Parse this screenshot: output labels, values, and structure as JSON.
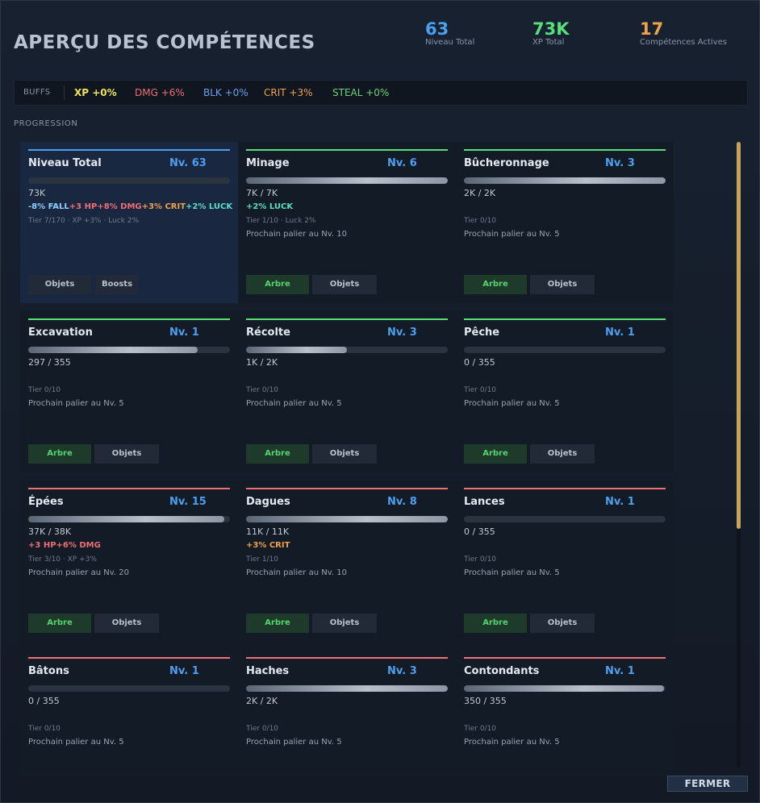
{
  "title": "APERÇU DES COMPÉTENCES",
  "stats": [
    {
      "value": "63",
      "label": "Niveau Total",
      "color": "#4d9ff0"
    },
    {
      "value": "73K",
      "label": "XP Total",
      "color": "#57e07a"
    },
    {
      "value": "17",
      "label": "Compétences Actives",
      "color": "#f0a24a"
    }
  ],
  "buffs": {
    "label": "BUFFS",
    "items": [
      {
        "text": "XP +0%",
        "color": "#f2e15a"
      },
      {
        "text": "DMG +6%",
        "color": "#ef6f74"
      },
      {
        "text": "BLK +0%",
        "color": "#6f9ff0"
      },
      {
        "text": "CRIT +3%",
        "color": "#f0a24a"
      },
      {
        "text": "STEAL +0%",
        "color": "#6fd37a"
      }
    ]
  },
  "progression_label": "PROGRESSION",
  "cards": [
    {
      "name": "Niveau Total",
      "level": "Nv. 63",
      "xp": "73K",
      "progress": 0,
      "line": "#4d9ff0",
      "selected": true,
      "bonus": [
        {
          "t": "-8% FALL",
          "c": "#8fd0ff"
        },
        {
          "t": "+3 HP",
          "c": "#ef6f74"
        },
        {
          "t": "+8% DMG",
          "c": "#ef6f74"
        },
        {
          "t": "+3% CRIT",
          "c": "#f0a24a"
        },
        {
          "t": "+2% LUCK",
          "c": "#57e0c8"
        }
      ],
      "tier": "Tier 7/170 · XP +3% · Luck 2%",
      "next": "",
      "buttons": [
        "Objets",
        "Boosts"
      ]
    },
    {
      "name": "Minage",
      "level": "Nv. 6",
      "xp": "7K / 7K",
      "progress": 1.0,
      "line": "#57e07a",
      "bonus": [
        {
          "t": "+2% LUCK",
          "c": "#57e0c8"
        }
      ],
      "tier": "Tier 1/10 · Luck 2%",
      "next": "Prochain palier au Nv. 10",
      "buttons": [
        "Arbre",
        "Objets"
      ]
    },
    {
      "name": "Bûcheronnage",
      "level": "Nv. 3",
      "xp": "2K / 2K",
      "progress": 1.0,
      "line": "#57e07a",
      "bonus": [],
      "tier": "Tier 0/10",
      "next": "Prochain palier au Nv. 5",
      "buttons": [
        "Arbre",
        "Objets"
      ]
    },
    {
      "name": "Excavation",
      "level": "Nv. 1",
      "xp": "297 / 355",
      "progress": 0.84,
      "line": "#57e07a",
      "bonus": [],
      "tier": "Tier 0/10",
      "next": "Prochain palier au Nv. 5",
      "buttons": [
        "Arbre",
        "Objets"
      ]
    },
    {
      "name": "Récolte",
      "level": "Nv. 3",
      "xp": "1K / 2K",
      "progress": 0.5,
      "line": "#57e07a",
      "bonus": [],
      "tier": "Tier 0/10",
      "next": "Prochain palier au Nv. 5",
      "buttons": [
        "Arbre",
        "Objets"
      ]
    },
    {
      "name": "Pêche",
      "level": "Nv. 1",
      "xp": "0 / 355",
      "progress": 0,
      "line": "#57e07a",
      "bonus": [],
      "tier": "Tier 0/10",
      "next": "Prochain palier au Nv. 5",
      "buttons": [
        "Arbre",
        "Objets"
      ]
    },
    {
      "name": "Épées",
      "level": "Nv. 15",
      "xp": "37K / 38K",
      "progress": 0.97,
      "line": "#ef6f74",
      "bonus": [
        {
          "t": "+3 HP",
          "c": "#ef6f74"
        },
        {
          "t": "+6% DMG",
          "c": "#ef6f74"
        }
      ],
      "tier": "Tier 3/10 · XP +3%",
      "next": "Prochain palier au Nv. 20",
      "buttons": [
        "Arbre",
        "Objets"
      ]
    },
    {
      "name": "Dagues",
      "level": "Nv. 8",
      "xp": "11K / 11K",
      "progress": 1.0,
      "line": "#ef6f74",
      "bonus": [
        {
          "t": "+3% CRIT",
          "c": "#f0a24a"
        }
      ],
      "tier": "Tier 1/10",
      "next": "Prochain palier au Nv. 10",
      "buttons": [
        "Arbre",
        "Objets"
      ]
    },
    {
      "name": "Lances",
      "level": "Nv. 1",
      "xp": "0 / 355",
      "progress": 0,
      "line": "#ef6f74",
      "bonus": [],
      "tier": "Tier 0/10",
      "next": "Prochain palier au Nv. 5",
      "buttons": [
        "Arbre",
        "Objets"
      ]
    },
    {
      "name": "Bâtons",
      "level": "Nv. 1",
      "xp": "0 / 355",
      "progress": 0,
      "line": "#ef6f74",
      "bonus": [],
      "tier": "Tier 0/10",
      "next": "Prochain palier au Nv. 5",
      "buttons": []
    },
    {
      "name": "Haches",
      "level": "Nv. 3",
      "xp": "2K / 2K",
      "progress": 1.0,
      "line": "#ef6f74",
      "bonus": [],
      "tier": "Tier 0/10",
      "next": "Prochain palier au Nv. 5",
      "buttons": []
    },
    {
      "name": "Contondants",
      "level": "Nv. 1",
      "xp": "350 / 355",
      "progress": 0.99,
      "line": "#ef6f74",
      "bonus": [],
      "tier": "Tier 0/10",
      "next": "Prochain palier au Nv. 5",
      "buttons": []
    }
  ],
  "close_label": "FERMER"
}
